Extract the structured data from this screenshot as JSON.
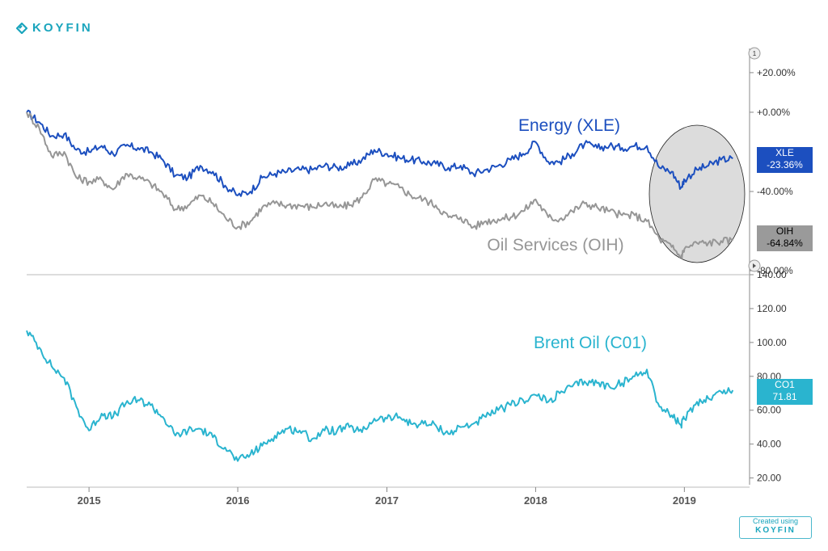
{
  "logo": {
    "text": "KOYFIN"
  },
  "created_box": {
    "line1": "Created using",
    "line2": "KOYFIN"
  },
  "colors": {
    "xle": "#1c4fbf",
    "oih": "#969696",
    "co1": "#2ab4cf",
    "axis": "#888888",
    "highlight": "#dcdcdc"
  },
  "chart_data": [
    {
      "type": "line",
      "title": "",
      "y_axis": {
        "ticks": [
          "+20.00%",
          "+0.00%",
          "-40.00%",
          "-80.00%"
        ],
        "ylim": [
          -82,
          22
        ]
      },
      "x_axis": {
        "ticks": [
          "2015",
          "2016",
          "2017",
          "2018",
          "2019"
        ]
      },
      "marker": "1",
      "series": [
        {
          "name": "Energy (XLE)",
          "color": "#1c4fbf",
          "last_label": "XLE",
          "last_value": "-23.36%",
          "points": [
            [
              "2014-08-01",
              0
            ],
            [
              "2014-09-01",
              -5
            ],
            [
              "2014-10-01",
              -12
            ],
            [
              "2014-11-01",
              -11
            ],
            [
              "2014-12-01",
              -19
            ],
            [
              "2015-01-01",
              -20
            ],
            [
              "2015-02-01",
              -17
            ],
            [
              "2015-03-01",
              -21
            ],
            [
              "2015-04-01",
              -17
            ],
            [
              "2015-05-01",
              -18
            ],
            [
              "2015-06-01",
              -20
            ],
            [
              "2015-07-01",
              -24
            ],
            [
              "2015-08-01",
              -32
            ],
            [
              "2015-09-01",
              -33
            ],
            [
              "2015-10-01",
              -27
            ],
            [
              "2015-11-01",
              -30
            ],
            [
              "2015-12-01",
              -37
            ],
            [
              "2016-01-01",
              -42
            ],
            [
              "2016-02-01",
              -40
            ],
            [
              "2016-03-01",
              -33
            ],
            [
              "2016-04-01",
              -31
            ],
            [
              "2016-05-01",
              -30
            ],
            [
              "2016-06-01",
              -29
            ],
            [
              "2016-07-01",
              -29
            ],
            [
              "2016-08-01",
              -27
            ],
            [
              "2016-09-01",
              -28
            ],
            [
              "2016-10-01",
              -27
            ],
            [
              "2016-11-01",
              -24
            ],
            [
              "2016-12-01",
              -19
            ],
            [
              "2017-01-01",
              -21
            ],
            [
              "2017-02-01",
              -23
            ],
            [
              "2017-03-01",
              -24
            ],
            [
              "2017-04-01",
              -25
            ],
            [
              "2017-05-01",
              -26
            ],
            [
              "2017-06-01",
              -28
            ],
            [
              "2017-07-01",
              -27
            ],
            [
              "2017-08-01",
              -31
            ],
            [
              "2017-09-01",
              -29
            ],
            [
              "2017-10-01",
              -27
            ],
            [
              "2017-11-01",
              -24
            ],
            [
              "2017-12-01",
              -21
            ],
            [
              "2018-01-01",
              -15
            ],
            [
              "2018-02-01",
              -25
            ],
            [
              "2018-03-01",
              -25
            ],
            [
              "2018-04-01",
              -21
            ],
            [
              "2018-05-01",
              -16
            ],
            [
              "2018-06-01",
              -18
            ],
            [
              "2018-07-01",
              -17
            ],
            [
              "2018-08-01",
              -18
            ],
            [
              "2018-09-01",
              -17
            ],
            [
              "2018-10-01",
              -17
            ],
            [
              "2018-11-01",
              -28
            ],
            [
              "2018-12-01",
              -30
            ],
            [
              "2018-12-24",
              -38
            ],
            [
              "2019-01-01",
              -34
            ],
            [
              "2019-02-01",
              -29
            ],
            [
              "2019-03-01",
              -27
            ],
            [
              "2019-04-01",
              -24
            ],
            [
              "2019-04-30",
              -23.36
            ]
          ]
        },
        {
          "name": "Oil Services (OIH)",
          "color": "#969696",
          "last_label": "OIH",
          "last_value": "-64.84%",
          "points": [
            [
              "2014-08-01",
              0
            ],
            [
              "2014-09-01",
              -8
            ],
            [
              "2014-10-01",
              -22
            ],
            [
              "2014-11-01",
              -20
            ],
            [
              "2014-12-01",
              -33
            ],
            [
              "2015-01-01",
              -35
            ],
            [
              "2015-02-01",
              -34
            ],
            [
              "2015-03-01",
              -39
            ],
            [
              "2015-04-01",
              -31
            ],
            [
              "2015-05-01",
              -33
            ],
            [
              "2015-06-01",
              -36
            ],
            [
              "2015-07-01",
              -41
            ],
            [
              "2015-08-01",
              -49
            ],
            [
              "2015-09-01",
              -47
            ],
            [
              "2015-10-01",
              -42
            ],
            [
              "2015-11-01",
              -46
            ],
            [
              "2015-12-01",
              -53
            ],
            [
              "2016-01-01",
              -58
            ],
            [
              "2016-02-01",
              -55
            ],
            [
              "2016-03-01",
              -48
            ],
            [
              "2016-04-01",
              -46
            ],
            [
              "2016-05-01",
              -47
            ],
            [
              "2016-06-01",
              -47
            ],
            [
              "2016-07-01",
              -48
            ],
            [
              "2016-08-01",
              -46
            ],
            [
              "2016-09-01",
              -48
            ],
            [
              "2016-10-01",
              -47
            ],
            [
              "2016-11-01",
              -43
            ],
            [
              "2016-12-01",
              -34
            ],
            [
              "2017-01-01",
              -36
            ],
            [
              "2017-02-01",
              -38
            ],
            [
              "2017-03-01",
              -42
            ],
            [
              "2017-04-01",
              -44
            ],
            [
              "2017-05-01",
              -47
            ],
            [
              "2017-06-01",
              -53
            ],
            [
              "2017-07-01",
              -53
            ],
            [
              "2017-08-01",
              -58
            ],
            [
              "2017-09-01",
              -55
            ],
            [
              "2017-10-01",
              -54
            ],
            [
              "2017-11-01",
              -53
            ],
            [
              "2017-12-01",
              -50
            ],
            [
              "2018-01-01",
              -44
            ],
            [
              "2018-02-01",
              -53
            ],
            [
              "2018-03-01",
              -54
            ],
            [
              "2018-04-01",
              -50
            ],
            [
              "2018-05-01",
              -46
            ],
            [
              "2018-06-01",
              -48
            ],
            [
              "2018-07-01",
              -50
            ],
            [
              "2018-08-01",
              -52
            ],
            [
              "2018-09-01",
              -52
            ],
            [
              "2018-10-01",
              -55
            ],
            [
              "2018-11-01",
              -64
            ],
            [
              "2018-12-01",
              -68
            ],
            [
              "2018-12-24",
              -73
            ],
            [
              "2019-01-01",
              -69
            ],
            [
              "2019-02-01",
              -66
            ],
            [
              "2019-03-01",
              -66
            ],
            [
              "2019-04-01",
              -65
            ],
            [
              "2019-04-30",
              -64.84
            ]
          ]
        }
      ],
      "annotations": [
        "Energy (XLE)",
        "Oil Services (OIH)"
      ]
    },
    {
      "type": "line",
      "title": "",
      "y_axis": {
        "ticks": [
          "140.00",
          "120.00",
          "100.00",
          "80.00",
          "60.00",
          "40.00",
          "20.00"
        ],
        "ylim": [
          16,
          140
        ]
      },
      "x_axis": {
        "ticks": [
          "2015",
          "2016",
          "2017",
          "2018",
          "2019"
        ]
      },
      "series": [
        {
          "name": "Brent Oil (C01)",
          "color": "#2ab4cf",
          "last_label": "CO1",
          "last_value": "71.81",
          "points": [
            [
              "2014-08-01",
              107
            ],
            [
              "2014-09-01",
              97
            ],
            [
              "2014-10-01",
              86
            ],
            [
              "2014-11-01",
              79
            ],
            [
              "2014-12-01",
              62
            ],
            [
              "2015-01-01",
              48
            ],
            [
              "2015-02-01",
              58
            ],
            [
              "2015-03-01",
              56
            ],
            [
              "2015-04-01",
              64
            ],
            [
              "2015-05-01",
              66
            ],
            [
              "2015-06-01",
              63
            ],
            [
              "2015-07-01",
              56
            ],
            [
              "2015-08-01",
              45
            ],
            [
              "2015-09-01",
              48
            ],
            [
              "2015-10-01",
              49
            ],
            [
              "2015-11-01",
              44
            ],
            [
              "2015-12-01",
              38
            ],
            [
              "2016-01-01",
              30
            ],
            [
              "2016-02-01",
              34
            ],
            [
              "2016-03-01",
              39
            ],
            [
              "2016-04-01",
              45
            ],
            [
              "2016-05-01",
              49
            ],
            [
              "2016-06-01",
              48
            ],
            [
              "2016-07-01",
              43
            ],
            [
              "2016-08-01",
              48
            ],
            [
              "2016-09-01",
              48
            ],
            [
              "2016-10-01",
              50
            ],
            [
              "2016-11-01",
              47
            ],
            [
              "2016-12-01",
              55
            ],
            [
              "2017-01-01",
              55
            ],
            [
              "2017-02-01",
              56
            ],
            [
              "2017-03-01",
              52
            ],
            [
              "2017-04-01",
              52
            ],
            [
              "2017-05-01",
              51
            ],
            [
              "2017-06-01",
              46
            ],
            [
              "2017-07-01",
              50
            ],
            [
              "2017-08-01",
              52
            ],
            [
              "2017-09-01",
              56
            ],
            [
              "2017-10-01",
              60
            ],
            [
              "2017-11-01",
              63
            ],
            [
              "2017-12-01",
              66
            ],
            [
              "2018-01-01",
              69
            ],
            [
              "2018-02-01",
              65
            ],
            [
              "2018-03-01",
              70
            ],
            [
              "2018-04-01",
              74
            ],
            [
              "2018-05-01",
              77
            ],
            [
              "2018-06-01",
              76
            ],
            [
              "2018-07-01",
              74
            ],
            [
              "2018-08-01",
              76
            ],
            [
              "2018-09-01",
              80
            ],
            [
              "2018-10-01",
              84
            ],
            [
              "2018-11-01",
              62
            ],
            [
              "2018-12-01",
              57
            ],
            [
              "2018-12-24",
              51
            ],
            [
              "2019-01-01",
              55
            ],
            [
              "2019-02-01",
              65
            ],
            [
              "2019-03-01",
              67
            ],
            [
              "2019-04-01",
              71
            ],
            [
              "2019-04-30",
              71.81
            ]
          ]
        }
      ],
      "annotations": [
        "Brent Oil (C01)"
      ]
    }
  ]
}
